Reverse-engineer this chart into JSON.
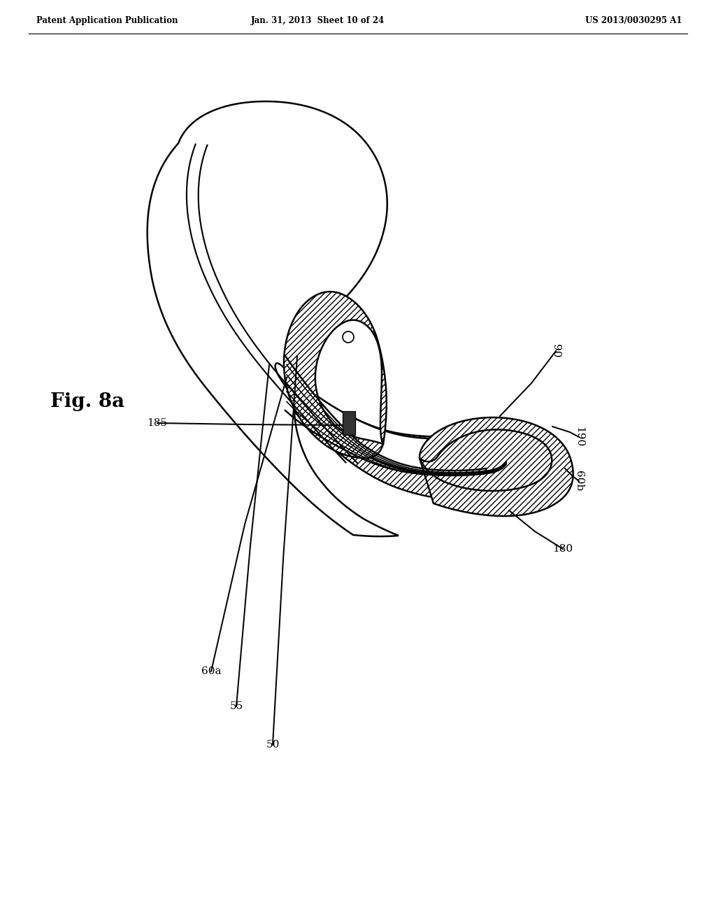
{
  "bg_color": "#ffffff",
  "title_left": "Patent Application Publication",
  "title_center": "Jan. 31, 2013  Sheet 10 of 24",
  "title_right": "US 2013/0030295 A1",
  "fig_label": "Fig. 8a",
  "line_color": "#000000",
  "line_width": 1.8
}
